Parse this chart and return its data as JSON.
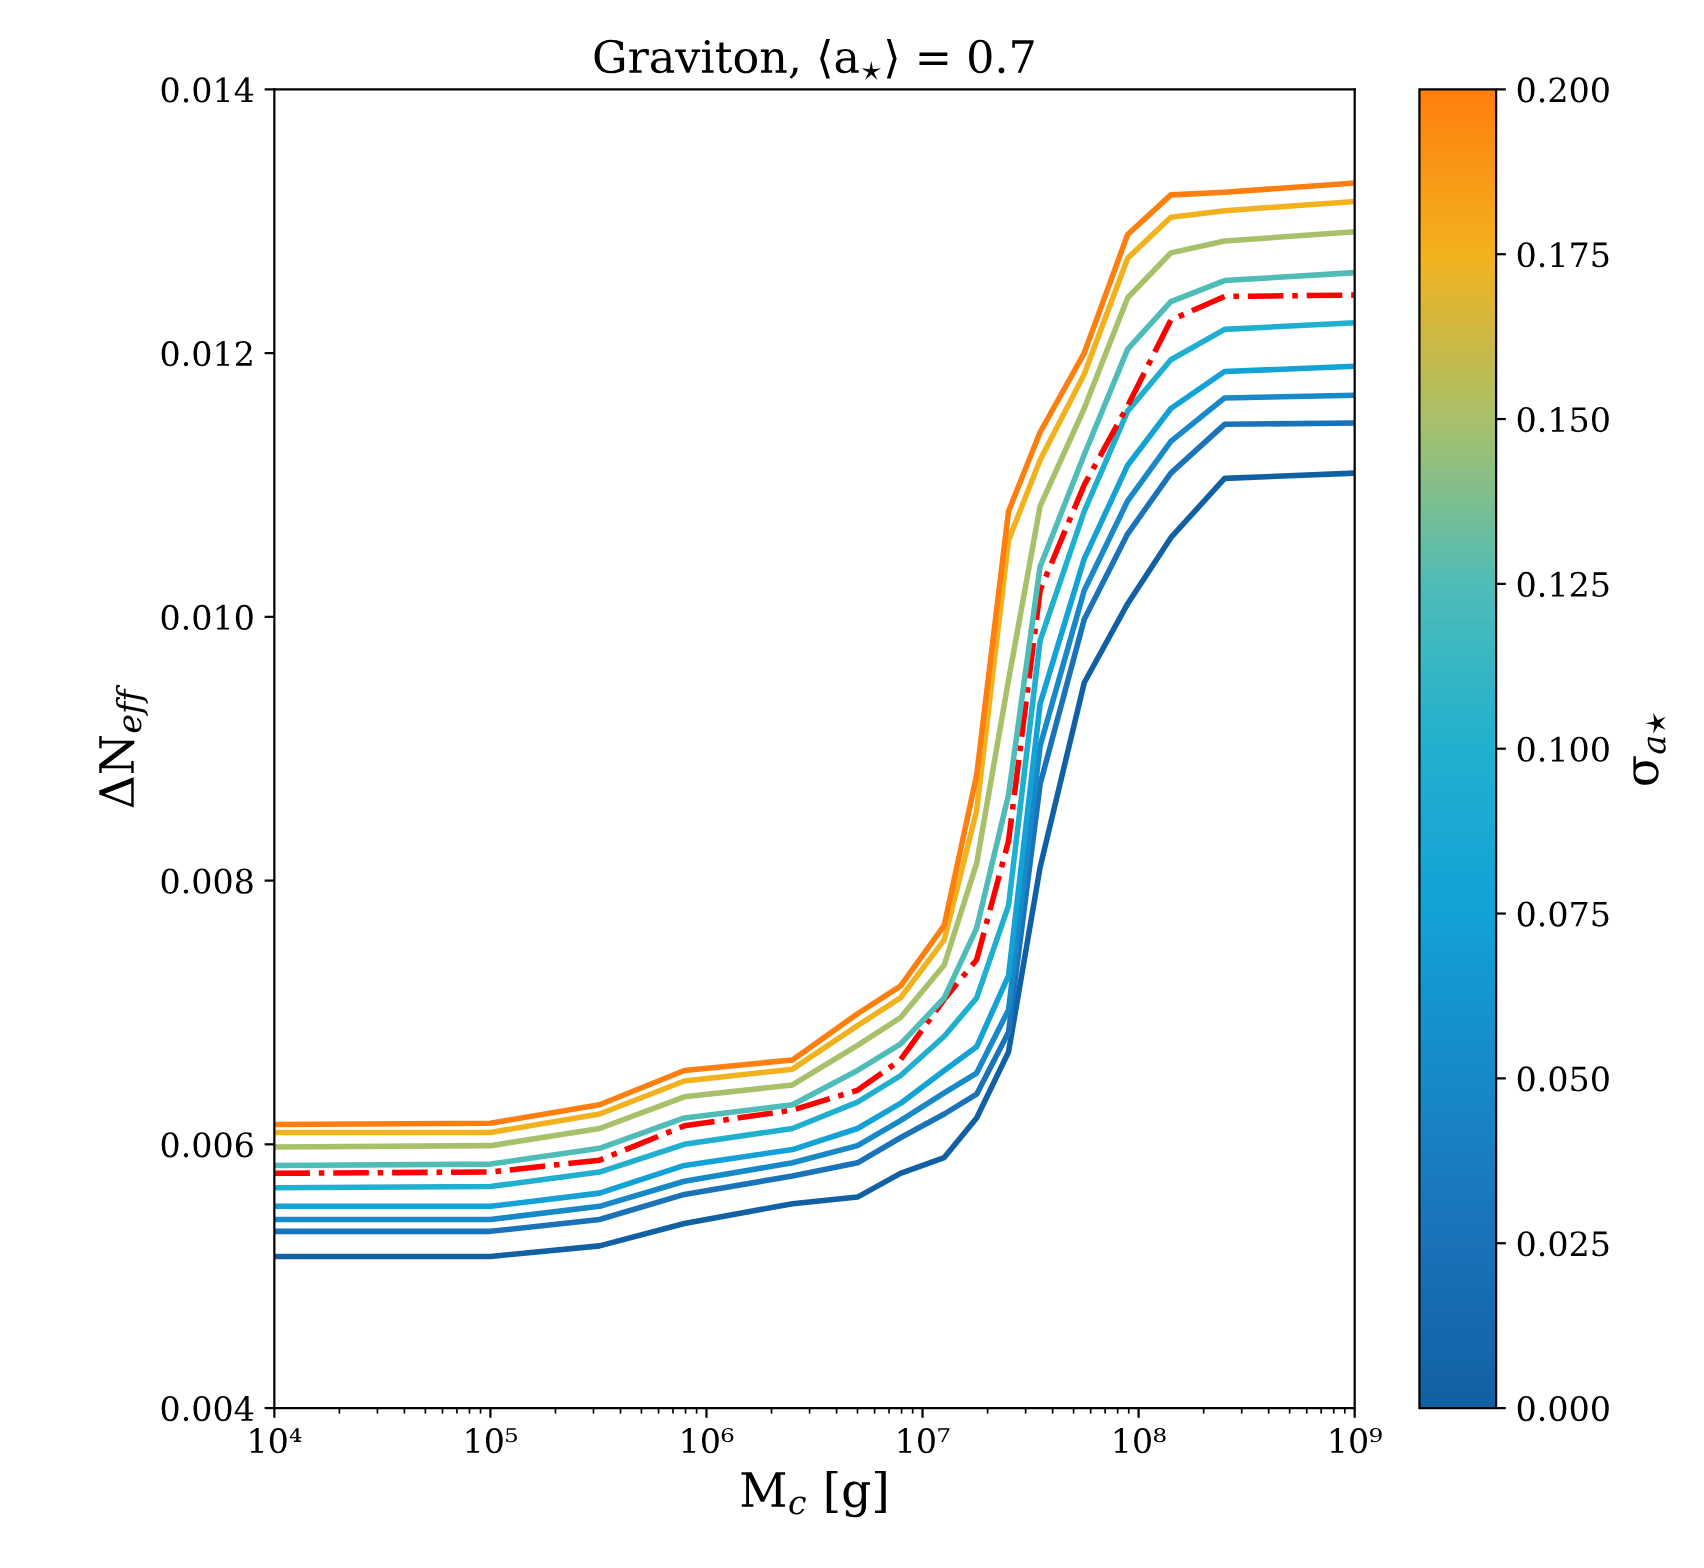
{
  "chart_data": {
    "type": "line",
    "title": "Graviton, ⟨a$_{⋆}$⟩ = 0.7",
    "xlabel": "M$_{c}$ [g]",
    "ylabel": "ΔN$_{eff}$",
    "clabel": "σ$_{a⋆}$",
    "log": "x",
    "grid": false,
    "x": [
      10000,
      100000,
      320000,
      790000,
      2500000,
      5000000,
      7900000,
      12600000,
      17800000,
      25000000,
      35000000,
      56000000,
      89000000,
      141000000,
      250000000,
      1000000000
    ],
    "xlim": [
      10000,
      1000000000
    ],
    "xticks": [
      {
        "value": 10000,
        "label": "10⁴"
      },
      {
        "value": 100000,
        "label": "10⁵"
      },
      {
        "value": 1000000,
        "label": "10⁶"
      },
      {
        "value": 10000000,
        "label": "10⁷"
      },
      {
        "value": 100000000,
        "label": "10⁸"
      },
      {
        "value": 1000000000,
        "label": "10⁹"
      }
    ],
    "ylim": [
      0.004,
      0.014
    ],
    "yticks": [
      {
        "value": 0.004,
        "label": "0.004"
      },
      {
        "value": 0.006,
        "label": "0.006"
      },
      {
        "value": 0.008,
        "label": "0.008"
      },
      {
        "value": 0.01,
        "label": "0.010"
      },
      {
        "value": 0.012,
        "label": "0.012"
      },
      {
        "value": 0.014,
        "label": "0.014"
      }
    ],
    "clim": [
      0,
      0.2
    ],
    "cticks": [
      {
        "value": 0,
        "label": "0.000"
      },
      {
        "value": 0.025,
        "label": "0.025"
      },
      {
        "value": 0.05,
        "label": "0.050"
      },
      {
        "value": 0.075,
        "label": "0.075"
      },
      {
        "value": 0.1,
        "label": "0.100"
      },
      {
        "value": 0.125,
        "label": "0.125"
      },
      {
        "value": 0.15,
        "label": "0.150"
      },
      {
        "value": 0.175,
        "label": "0.175"
      },
      {
        "value": 0.2,
        "label": "0.200"
      }
    ],
    "series": [
      {
        "color": "#1260a4",
        "values": [
          0.00515,
          0.00515,
          0.00523,
          0.0054,
          0.00555,
          0.0056,
          0.00578,
          0.0059,
          0.0062,
          0.0067,
          0.0081,
          0.0095,
          0.0101,
          0.0106,
          0.01105,
          0.01109
        ]
      },
      {
        "color": "#1a72b8",
        "values": [
          0.00534,
          0.00534,
          0.00543,
          0.00562,
          0.00576,
          0.00586,
          0.00605,
          0.00623,
          0.00638,
          0.00685,
          0.00873,
          0.00998,
          0.01063,
          0.01109,
          0.01146,
          0.01147
        ]
      },
      {
        "color": "#1789c9",
        "values": [
          0.00543,
          0.00543,
          0.00553,
          0.00572,
          0.00586,
          0.00599,
          0.00618,
          0.00639,
          0.00654,
          0.00702,
          0.00902,
          0.0102,
          0.01088,
          0.01133,
          0.01166,
          0.01168
        ]
      },
      {
        "color": "#12a2d6",
        "values": [
          0.00553,
          0.00553,
          0.00563,
          0.00584,
          0.00596,
          0.00612,
          0.00631,
          0.00656,
          0.00674,
          0.00728,
          0.00934,
          0.01044,
          0.01115,
          0.01158,
          0.01186,
          0.0119
        ]
      },
      {
        "color": "#20b0cf",
        "values": [
          0.00567,
          0.00568,
          0.00579,
          0.006,
          0.00612,
          0.00632,
          0.00652,
          0.00682,
          0.00711,
          0.00781,
          0.00982,
          0.0108,
          0.01156,
          0.01195,
          0.01218,
          0.01223
        ]
      },
      {
        "color": "#ff0000",
        "line_style": "dashdot",
        "values": [
          0.00578,
          0.00579,
          0.00588,
          0.00614,
          0.00626,
          0.00641,
          0.00664,
          0.0071,
          0.0074,
          0.0083,
          0.0102,
          0.011,
          0.0116,
          0.01225,
          0.01243,
          0.01244
        ]
      },
      {
        "color": "#4fbcb8",
        "values": [
          0.00584,
          0.00585,
          0.00597,
          0.0062,
          0.0063,
          0.00656,
          0.00676,
          0.00711,
          0.00764,
          0.00865,
          0.01038,
          0.01123,
          0.01203,
          0.01239,
          0.01255,
          0.01261
        ]
      },
      {
        "color": "#a8c06a",
        "values": [
          0.00598,
          0.00599,
          0.00612,
          0.00636,
          0.00645,
          0.00675,
          0.00696,
          0.00736,
          0.00813,
          0.00952,
          0.01084,
          0.01158,
          0.01242,
          0.01276,
          0.01285,
          0.01292
        ]
      },
      {
        "color": "#f2b21e",
        "values": [
          0.00609,
          0.00609,
          0.00623,
          0.00648,
          0.00657,
          0.0069,
          0.00711,
          0.00755,
          0.00853,
          0.01058,
          0.01119,
          0.01184,
          0.01272,
          0.01303,
          0.01308,
          0.01315
        ]
      },
      {
        "color": "#ff7f0e",
        "values": [
          0.00615,
          0.00616,
          0.0063,
          0.00656,
          0.00664,
          0.00699,
          0.0072,
          0.00766,
          0.0088,
          0.0108,
          0.0114,
          0.012,
          0.0129,
          0.0132,
          0.01322,
          0.01329
        ]
      }
    ]
  }
}
